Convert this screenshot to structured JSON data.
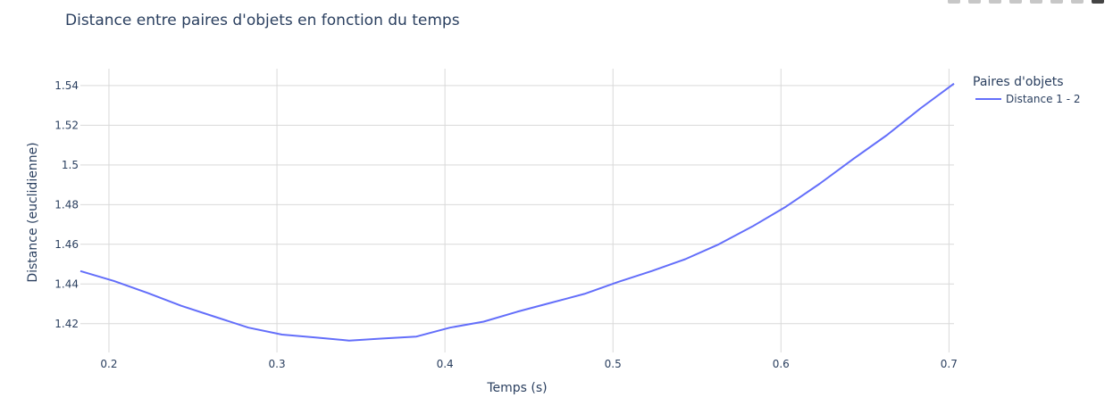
{
  "chart_data": {
    "type": "line",
    "title": "Distance entre paires d'objets en fonction du temps",
    "xlabel": "Temps (s)",
    "ylabel": "Distance (euclidienne)",
    "xlim": [
      0.183,
      0.703
    ],
    "ylim": [
      1.4055,
      1.5485
    ],
    "x_ticks": [
      0.2,
      0.3,
      0.4,
      0.5,
      0.6,
      0.7
    ],
    "x_tick_labels": [
      "0.2",
      "0.3",
      "0.4",
      "0.5",
      "0.6",
      "0.7"
    ],
    "y_ticks": [
      1.42,
      1.44,
      1.46,
      1.48,
      1.5,
      1.52,
      1.54
    ],
    "y_tick_labels": [
      "1.42",
      "1.44",
      "1.46",
      "1.48",
      "1.5",
      "1.52",
      "1.54"
    ],
    "grid": true,
    "legend": {
      "title": "Paires d'objets",
      "placement": "top-right"
    },
    "series": [
      {
        "name": "Distance 1 - 2",
        "color": "#636efa",
        "x": [
          0.183,
          0.203,
          0.223,
          0.243,
          0.263,
          0.283,
          0.303,
          0.323,
          0.343,
          0.363,
          0.383,
          0.403,
          0.423,
          0.443,
          0.463,
          0.483,
          0.503,
          0.523,
          0.543,
          0.563,
          0.583,
          0.603,
          0.623,
          0.643,
          0.663,
          0.683,
          0.703
        ],
        "values": [
          1.4465,
          1.4415,
          1.4355,
          1.429,
          1.4235,
          1.418,
          1.4145,
          1.413,
          1.4115,
          1.4125,
          1.4135,
          1.418,
          1.421,
          1.426,
          1.4305,
          1.435,
          1.441,
          1.4465,
          1.4525,
          1.46,
          1.469,
          1.479,
          1.4905,
          1.503,
          1.515,
          1.5285,
          1.541
        ]
      }
    ]
  },
  "ui": {
    "modebar_icons": [
      "camera-icon",
      "zoom-icon",
      "pan-icon",
      "zoom-in-icon",
      "zoom-out-icon",
      "autoscale-icon",
      "reset-axes-icon",
      "plotly-logo-icon"
    ]
  }
}
